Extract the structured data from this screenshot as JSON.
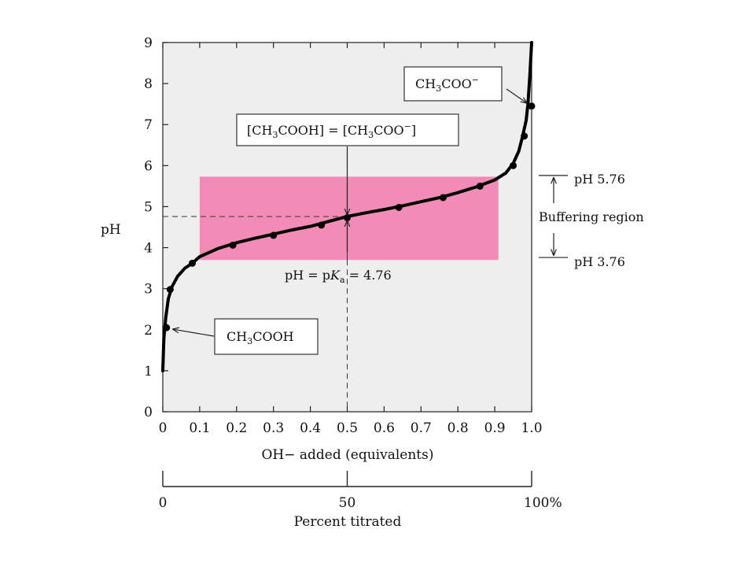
{
  "colors": {
    "plot_background": "#eeeeee",
    "buffer_region": "#f28cb6",
    "curve": "#000000",
    "text": "#111111"
  },
  "chart_data": {
    "type": "line",
    "xlabel": "OH− added (equivalents)",
    "ylabel": "pH",
    "xlim": [
      0,
      1.0
    ],
    "ylim": [
      0,
      9
    ],
    "x_tick_labels": [
      "0",
      "0.1",
      "0.2",
      "0.3",
      "0.4",
      "0.5",
      "0.6",
      "0.7",
      "0.8",
      "0.9",
      "1.0"
    ],
    "y_tick_labels": [
      "0",
      "1",
      "2",
      "3",
      "4",
      "5",
      "6",
      "7",
      "8",
      "9"
    ],
    "grid": false,
    "series": [
      {
        "curve": [
          [
            0.0,
            1.0
          ],
          [
            0.003,
            1.8
          ],
          [
            0.008,
            2.3
          ],
          [
            0.015,
            2.75
          ],
          [
            0.025,
            3.05
          ],
          [
            0.04,
            3.3
          ],
          [
            0.06,
            3.5
          ],
          [
            0.08,
            3.62
          ],
          [
            0.1,
            3.78
          ],
          [
            0.15,
            3.98
          ],
          [
            0.2,
            4.12
          ],
          [
            0.25,
            4.23
          ],
          [
            0.3,
            4.33
          ],
          [
            0.35,
            4.43
          ],
          [
            0.4,
            4.52
          ],
          [
            0.45,
            4.64
          ],
          [
            0.5,
            4.76
          ],
          [
            0.55,
            4.85
          ],
          [
            0.6,
            4.93
          ],
          [
            0.65,
            5.02
          ],
          [
            0.7,
            5.12
          ],
          [
            0.75,
            5.22
          ],
          [
            0.8,
            5.34
          ],
          [
            0.85,
            5.48
          ],
          [
            0.9,
            5.65
          ],
          [
            0.93,
            5.82
          ],
          [
            0.95,
            6.05
          ],
          [
            0.965,
            6.35
          ],
          [
            0.975,
            6.7
          ],
          [
            0.985,
            7.1
          ],
          [
            0.99,
            7.5
          ],
          [
            0.995,
            8.2
          ],
          [
            1.0,
            9.0
          ]
        ],
        "points": [
          [
            0.01,
            2.05
          ],
          [
            0.02,
            2.98
          ],
          [
            0.08,
            3.62
          ],
          [
            0.19,
            4.06
          ],
          [
            0.3,
            4.3
          ],
          [
            0.43,
            4.55
          ],
          [
            0.5,
            4.73
          ],
          [
            0.64,
            4.98
          ],
          [
            0.76,
            5.22
          ],
          [
            0.86,
            5.5
          ],
          [
            0.95,
            6.0
          ],
          [
            0.98,
            6.72
          ],
          [
            1.0,
            7.45
          ]
        ]
      }
    ],
    "shaded_region": {
      "x": [
        0.1,
        0.91
      ],
      "y": [
        3.7,
        5.73
      ]
    },
    "buffer_range": {
      "low": 3.76,
      "high": 5.76
    },
    "pka_marker": {
      "x": 0.5,
      "y": 4.76
    },
    "annotations": {
      "ch3coo_minus": {
        "text": "CH3COO−",
        "points_to": [
          0.995,
          7.45
        ]
      },
      "equal": {
        "text": "[CH3COOH] = [CH3COO−]",
        "points_to": [
          0.5,
          4.73
        ]
      },
      "ch3cooh": {
        "text": "CH3COOH",
        "points_to": [
          0.015,
          2.05
        ]
      },
      "pka_label": "pH = pKa = 4.76",
      "ph_high": "pH 5.76",
      "ph_low": "pH 3.76",
      "buffering": "Buffering region"
    },
    "secondary_axis": {
      "title": "Percent titrated",
      "tick_labels": [
        "0",
        "50",
        "100%"
      ],
      "tick_positions": [
        0,
        0.5,
        1.0
      ]
    }
  }
}
